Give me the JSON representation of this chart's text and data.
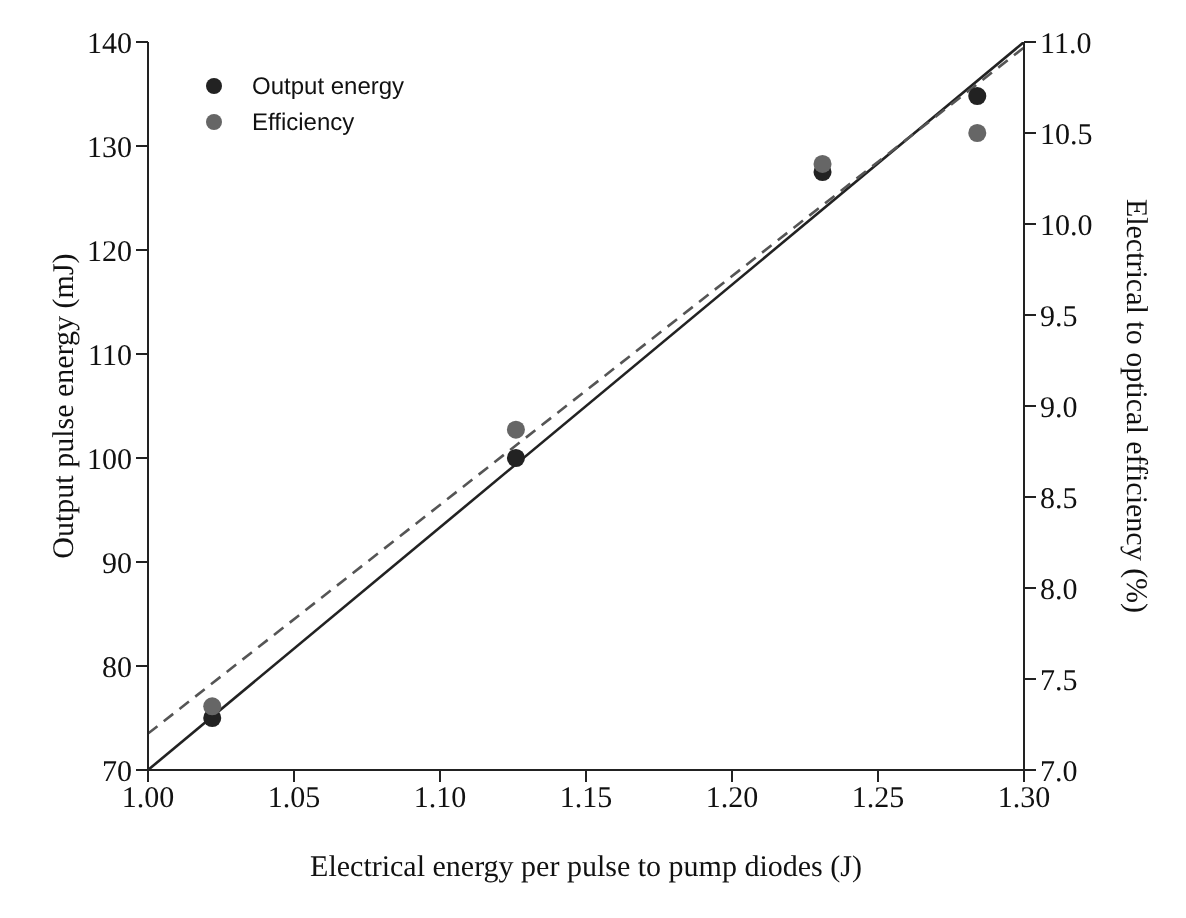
{
  "chart_data": {
    "type": "scatter",
    "xlabel": "Electrical energy per pulse to pump diodes (J)",
    "ylabel": "Output pulse energy (mJ)",
    "y2label": "Electrical to optical efficiency (%)",
    "xlim": [
      1.0,
      1.3
    ],
    "xticks": [
      {
        "value": 1.0,
        "label": "1.00"
      },
      {
        "value": 1.05,
        "label": "1.05"
      },
      {
        "value": 1.1,
        "label": "1.10"
      },
      {
        "value": 1.15,
        "label": "1.15"
      },
      {
        "value": 1.2,
        "label": "1.20"
      },
      {
        "value": 1.25,
        "label": "1.25"
      },
      {
        "value": 1.3,
        "label": "1.30"
      }
    ],
    "ylim": [
      70,
      140
    ],
    "yticks": [
      70,
      80,
      90,
      100,
      110,
      120,
      130,
      140
    ],
    "y2lim": [
      7.0,
      11.0
    ],
    "y2ticks": [
      {
        "value": 7.0,
        "label": "7.0"
      },
      {
        "value": 7.5,
        "label": "7.5"
      },
      {
        "value": 8.0,
        "label": "8.0"
      },
      {
        "value": 8.5,
        "label": "8.5"
      },
      {
        "value": 9.0,
        "label": "9.0"
      },
      {
        "value": 9.5,
        "label": "9.5"
      },
      {
        "value": 10.0,
        "label": "10.0"
      },
      {
        "value": 10.5,
        "label": "10.5"
      },
      {
        "value": 11.0,
        "label": "11.0"
      }
    ],
    "grid": false,
    "legend": "top left",
    "marker": "circle",
    "series": [
      {
        "name": "Output energy",
        "color": "#222222",
        "x": [
          1.022,
          1.126,
          1.231,
          1.284
        ],
        "values": [
          75.0,
          100.0,
          127.5,
          134.8
        ]
      },
      {
        "name": "Efficiency",
        "color": "#666666",
        "axis": "y2",
        "x": [
          1.022,
          1.126,
          1.231,
          1.284
        ],
        "values": [
          7.35,
          8.87,
          10.33,
          10.5
        ]
      },
      {
        "type": "line",
        "color": "#222222",
        "marker": "none",
        "line_style": "solid",
        "x": [
          1.0,
          1.3
        ],
        "values": [
          70,
          140
        ]
      },
      {
        "type": "line",
        "color": "#555555",
        "marker": "none",
        "line_style": "dashed",
        "axis": "y2",
        "x": [
          1.0,
          1.3
        ],
        "values": [
          7.2,
          10.97
        ]
      }
    ]
  }
}
